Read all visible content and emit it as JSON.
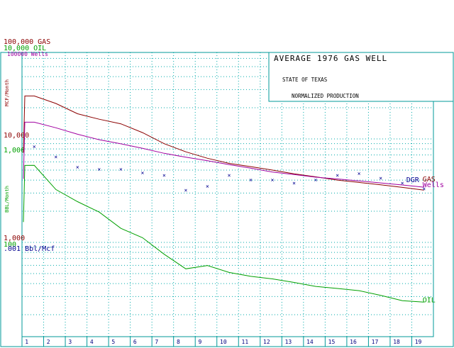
{
  "chart_data": {
    "type": "line",
    "title_box": {
      "title": "AVERAGE 1976 GAS WELL",
      "line2": "STATE OF TEXAS",
      "line3": "NORMALIZED PRODUCTION"
    },
    "y_axis_labels": {
      "gas_top": "100,000 GAS",
      "oil_top": "10,000 OIL",
      "wells_top": "100000 Wells",
      "gas_unit": "MCF/Month",
      "oil_unit": "BBL/Month",
      "gas_mid": "10,000",
      "oil_mid": "1,000",
      "gas_low": "1,000",
      "oil_low": "100",
      "dgr_low": ".001 Bbl/Mcf"
    },
    "x": {
      "categories": [
        "1",
        "2",
        "3",
        "4",
        "5",
        "6",
        "7",
        "8",
        "9",
        "10",
        "11",
        "12",
        "13",
        "14",
        "15",
        "16",
        "17",
        "18",
        "19"
      ],
      "label": ""
    },
    "y_scale": "log",
    "grid": true,
    "colors": {
      "gas": "#8b0000",
      "oil": "#00a000",
      "wells": "#a000a0",
      "dgr": "#000090",
      "frame": "#009999",
      "grid": "#00aaaa"
    },
    "series": [
      {
        "name": "GAS",
        "label": "GAS",
        "values": [
          26000,
          22000,
          17500,
          15500,
          14000,
          11500,
          9000,
          7500,
          6500,
          5800,
          5400,
          5000,
          4600,
          4300,
          4000,
          3800,
          3600,
          3400,
          3200
        ]
      },
      {
        "name": "Wells",
        "label": "Wells",
        "values": [
          1700,
          1500,
          1300,
          1150,
          1050,
          950,
          850,
          780,
          720,
          660,
          610,
          560,
          530,
          500,
          480,
          460,
          440,
          420,
          400
        ]
      },
      {
        "name": "OIL",
        "label": "OIL",
        "values": [
          650,
          380,
          290,
          230,
          160,
          130,
          90,
          65,
          70,
          60,
          55,
          52,
          48,
          44,
          42,
          40,
          36,
          32,
          31
        ]
      },
      {
        "name": "DGR",
        "label": "DGR",
        "values": [
          0.0095,
          0.0075,
          0.006,
          0.0057,
          0.0057,
          0.0053,
          0.005,
          0.0036,
          0.0039,
          0.005,
          0.0045,
          0.0045,
          0.0042,
          0.0045,
          0.005,
          0.0052,
          0.0047,
          0.0042,
          0.0037
        ]
      }
    ]
  }
}
